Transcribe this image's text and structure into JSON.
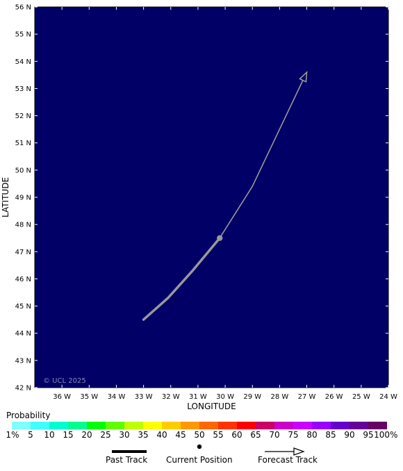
{
  "map": {
    "copyright": "© UCL 2025",
    "xlabel": "LONGITUDE",
    "ylabel": "LATITUDE",
    "background_color": "#000066",
    "lon_range": [
      -37,
      -24
    ],
    "lat_range": [
      42,
      56
    ],
    "lon_ticks": [
      {
        "value": -36,
        "label": "36 W"
      },
      {
        "value": -35,
        "label": "35 W"
      },
      {
        "value": -34,
        "label": "34 W"
      },
      {
        "value": -33,
        "label": "33 W"
      },
      {
        "value": -32,
        "label": "32 W"
      },
      {
        "value": -31,
        "label": "31 W"
      },
      {
        "value": -30,
        "label": "30 W"
      },
      {
        "value": -29,
        "label": "29 W"
      },
      {
        "value": -28,
        "label": "28 W"
      },
      {
        "value": -27,
        "label": "27 W"
      },
      {
        "value": -26,
        "label": "26 W"
      },
      {
        "value": -25,
        "label": "25 W"
      },
      {
        "value": -24,
        "label": "24 W"
      }
    ],
    "lat_ticks": [
      {
        "value": 42,
        "label": "42 N"
      },
      {
        "value": 43,
        "label": "43 N"
      },
      {
        "value": 44,
        "label": "44 N"
      },
      {
        "value": 45,
        "label": "45 N"
      },
      {
        "value": 46,
        "label": "46 N"
      },
      {
        "value": 47,
        "label": "47 N"
      },
      {
        "value": 48,
        "label": "48 N"
      },
      {
        "value": 49,
        "label": "49 N"
      },
      {
        "value": 50,
        "label": "50 N"
      },
      {
        "value": 51,
        "label": "51 N"
      },
      {
        "value": 52,
        "label": "52 N"
      },
      {
        "value": 53,
        "label": "53 N"
      },
      {
        "value": 54,
        "label": "54 N"
      },
      {
        "value": 55,
        "label": "55 N"
      },
      {
        "value": 56,
        "label": "56 N"
      }
    ],
    "past_track": [
      [
        -33.0,
        44.5
      ],
      [
        -32.1,
        45.3
      ],
      [
        -31.2,
        46.3
      ],
      [
        -30.2,
        47.5
      ]
    ],
    "current_position": [
      -30.2,
      47.5
    ],
    "forecast_track": [
      [
        -30.2,
        47.5
      ],
      [
        -29.0,
        49.4
      ],
      [
        -27.0,
        53.6
      ]
    ],
    "track_color": "#999999"
  },
  "legend": {
    "title": "Probability",
    "colors": [
      "#80ffff",
      "#40ffff",
      "#00ffd0",
      "#00ff90",
      "#00ff00",
      "#60ff00",
      "#c0ff00",
      "#ffff00",
      "#ffcc00",
      "#ff9900",
      "#ff6600",
      "#ff3300",
      "#ff0000",
      "#cc0066",
      "#cc00cc",
      "#cc00ff",
      "#9900ff",
      "#6600cc",
      "#660099",
      "#660066"
    ],
    "labels": [
      "1%",
      "5",
      "10",
      "15",
      "20",
      "25",
      "30",
      "35",
      "40",
      "45",
      "50",
      "55",
      "60",
      "65",
      "70",
      "75",
      "80",
      "85",
      "90",
      "95",
      "100%"
    ]
  },
  "key": {
    "past_track": "Past Track",
    "current_position": "Current Position",
    "forecast_track": "Forecast Track"
  }
}
